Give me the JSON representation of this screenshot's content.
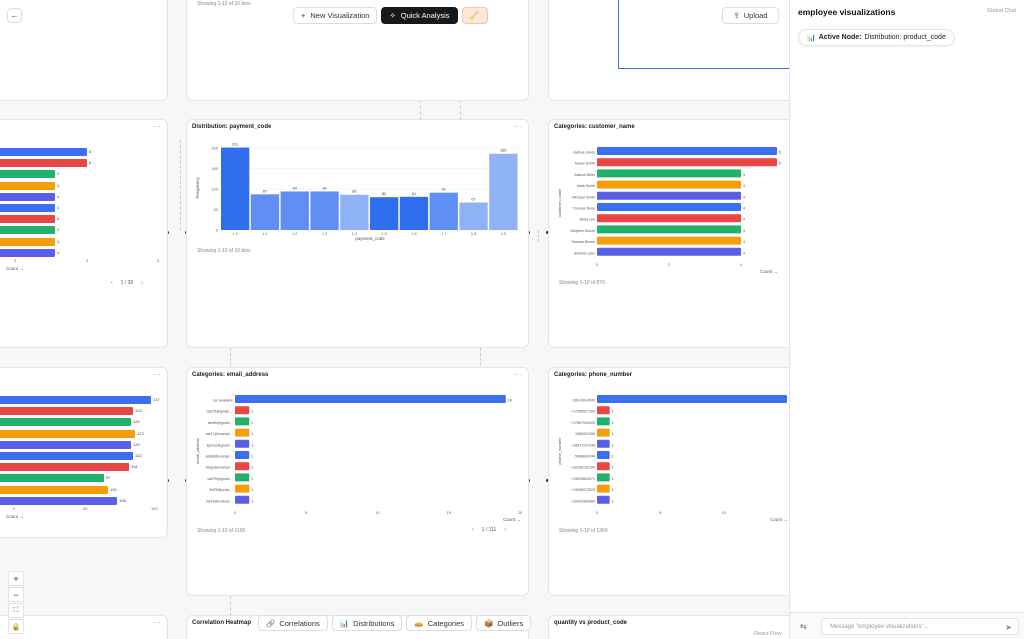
{
  "colors": {
    "blue": "#3b6ff0",
    "red": "#e84545",
    "green": "#20b26b",
    "orange": "#f59e0b",
    "indigo": "#5b5fe8",
    "hist_dark": "#2f6fed",
    "hist_mid": "#5f8ff5",
    "hist_light": "#8fb2f7"
  },
  "toolbar": {
    "new_viz": "New Visualization",
    "quick_analysis": "Quick Analysis",
    "clean_icon": "broom-icon"
  },
  "upload": {
    "label": "Upload"
  },
  "panel": {
    "title": "employee visualizations",
    "global_chat": "Global Chat",
    "active_node_label": "Active Node:",
    "active_node_value": "Distribution: product_code",
    "chat_placeholder": "Message \"employee visualizations\"..."
  },
  "bottom_bar": {
    "correlations": "Correlations",
    "distributions": "Distributions",
    "categories": "Categories",
    "outliers": "Outliers"
  },
  "react_flow": "React Flow",
  "nodes": {
    "top_center_foot": "Showing 1-10 of 10 bins",
    "left_mid": {
      "values": [
        "6",
        "6",
        "4",
        "4",
        "4",
        "4",
        "4",
        "4",
        "4",
        "4"
      ],
      "ticks": [
        "0",
        "2",
        "4"
      ],
      "xlabel": "Count →",
      "pager": "1 / 36"
    },
    "payment": {
      "title": "Distribution: payment_code",
      "foot": "Showing 1-10 of 10 bins",
      "ylabel": "Frequency",
      "xlabel": "payment_code",
      "yticks": [
        "0",
        "50",
        "100",
        "150",
        "200"
      ]
    },
    "customer": {
      "title": "Categories: customer_name",
      "foot": "Showing 1-10 of 876",
      "ylabel": "customer_name",
      "xlabel": "Count →",
      "ticks": [
        "0",
        "2",
        "4"
      ]
    },
    "left_low": {
      "values": [
        "137",
        "122",
        "120",
        "123",
        "120",
        "122",
        "118",
        "97",
        "100",
        "108"
      ],
      "ticks": [
        "0",
        "50",
        "100"
      ],
      "xlabel": "Count →"
    },
    "email": {
      "title": "Categories: email_address",
      "foot": "Showing 1-10 of 1105",
      "pager": "1 / 111",
      "ylabel": "email_address",
      "xlabel": "Count →",
      "ticks": [
        "0",
        "5",
        "10",
        "15",
        "20"
      ]
    },
    "phone": {
      "title": "Categories: phone_number",
      "foot": "Showing 1-10 of 1369",
      "ylabel": "phone_number",
      "xlabel": "Count →",
      "ticks": [
        "0",
        "5",
        "10"
      ]
    },
    "corr_title": "Correlation Heatmap",
    "scatter_title": "quantity vs product_code"
  },
  "chart_data": [
    {
      "type": "bar",
      "title": "Distribution: payment_code",
      "xlabel": "payment_code",
      "ylabel": "Frequency",
      "categories": [
        "1.0",
        "1.1",
        "1.2",
        "1.3",
        "1.4",
        "1.5",
        "1.6",
        "1.7",
        "1.8",
        "1.9"
      ],
      "values": [
        201,
        87,
        94,
        94,
        86,
        80,
        81,
        91,
        67,
        186
      ],
      "ylim": [
        0,
        200
      ]
    },
    {
      "type": "bar",
      "title": "Categories: customer_name",
      "xlabel": "Count →",
      "ylabel": "customer_name",
      "categories": [
        "Joshua Jones",
        "James Smith",
        "Joshua Miller",
        "Mark Smith",
        "Michael Smith",
        "Thomas Rose",
        "Brian Lee",
        "Stephen Moore",
        "Thomas Brown",
        "Andrew Lane"
      ],
      "values": [
        5,
        5,
        4,
        4,
        4,
        4,
        4,
        4,
        4,
        4
      ],
      "xlim": [
        0,
        5
      ]
    },
    {
      "type": "bar",
      "title": "Categories: email_address",
      "xlabel": "Count →",
      "ylabel": "email_address",
      "categories": [
        "not available",
        "cad75@gmail.com",
        "lsmith@gmail.com",
        "ssl47@example.org",
        "kjones@gmail.com",
        "sdal8@example.org",
        "blogs@example.com",
        "carl76@gmail.com",
        "ZhFill@outlook.com",
        "JohH@outlook.com"
      ],
      "values": [
        19,
        1,
        1,
        1,
        1,
        1,
        1,
        1,
        1,
        1
      ],
      "xlim": [
        0,
        20
      ]
    },
    {
      "type": "bar",
      "title": "Categories: phone_number",
      "xlabel": "Count →",
      "ylabel": "phone_number",
      "categories": [
        "000-000-0000",
        "+17065927160",
        "+17657510900",
        "1660002450",
        "+16871107948",
        "5468834244",
        "+18168132166",
        "+13039604071",
        "+13098972525",
        "+16433309485"
      ],
      "values": [
        15,
        1,
        1,
        1,
        1,
        1,
        1,
        1,
        1,
        1
      ],
      "xlim": [
        0,
        15
      ]
    }
  ]
}
